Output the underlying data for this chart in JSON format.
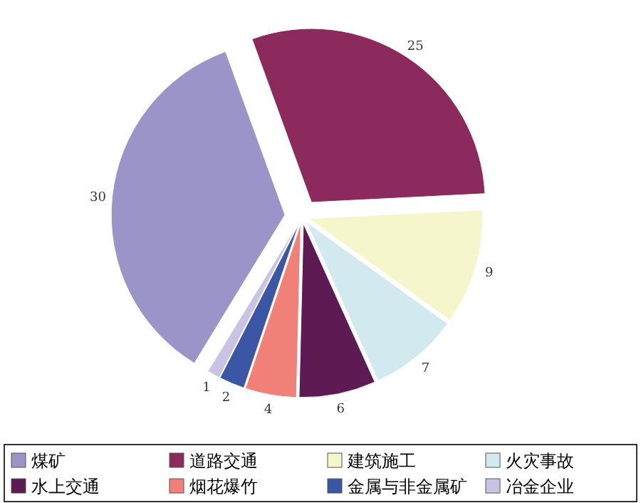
{
  "chart_data": {
    "type": "pie",
    "categories": [
      "煤矿",
      "道路交通",
      "建筑施工",
      "火灾事故",
      "水上交通",
      "烟花爆竹",
      "金属与非金属矿",
      "冶金企业"
    ],
    "values": [
      30,
      25,
      9,
      7,
      6,
      4,
      2,
      1
    ],
    "colors": [
      "#9b94c8",
      "#8c2a5e",
      "#f6f6cc",
      "#d2e9ef",
      "#5e1a52",
      "#f08078",
      "#3c56a6",
      "#cbc3e3"
    ],
    "data_labels": true,
    "legend": "bottom"
  }
}
